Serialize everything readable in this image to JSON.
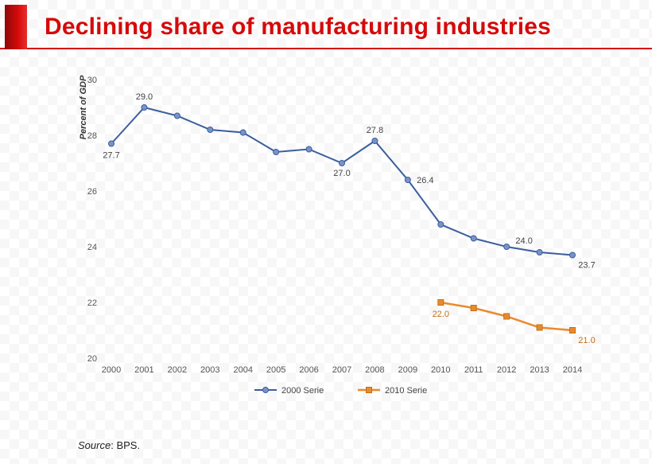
{
  "header": {
    "title": "Declining share of manufacturing industries"
  },
  "chart": {
    "type": "line",
    "ylabel": "Percent of GDP",
    "ylim": [
      20,
      30
    ],
    "ytick_step": 2,
    "yticks": [
      20,
      22,
      24,
      26,
      28,
      30
    ],
    "categories": [
      "2000",
      "2001",
      "2002",
      "2003",
      "2004",
      "2005",
      "2006",
      "2007",
      "2008",
      "2009",
      "2010",
      "2011",
      "2012",
      "2013",
      "2014"
    ],
    "series": [
      {
        "name": "2000 Serie",
        "color": "#3b5e9e",
        "marker_fill": "#7a93c7",
        "marker_shape": "circle",
        "values": [
          27.7,
          29.0,
          28.7,
          28.2,
          28.1,
          27.4,
          27.5,
          27.0,
          27.8,
          26.4,
          24.8,
          24.3,
          24.0,
          23.8,
          23.7
        ]
      },
      {
        "name": "2010 Serie",
        "color": "#e88b2d",
        "marker_fill": "#e88b2d",
        "marker_shape": "square",
        "values": [
          null,
          null,
          null,
          null,
          null,
          null,
          null,
          null,
          null,
          null,
          22.0,
          21.8,
          21.5,
          21.1,
          21.0
        ]
      }
    ],
    "data_labels_blue": {
      "2000": "27.7",
      "2001": "29.0",
      "2007": "27.0",
      "2008": "27.8",
      "2009": "26.4",
      "2012": "24.0",
      "2014": "23.7"
    },
    "data_labels_orange": {
      "2010": "22.0",
      "2014": "21.0"
    },
    "legend": {
      "items": [
        "2000 Serie",
        "2010 Serie"
      ]
    },
    "background_color": "transparent"
  },
  "source": {
    "label": "Source",
    "value": "BPS."
  }
}
